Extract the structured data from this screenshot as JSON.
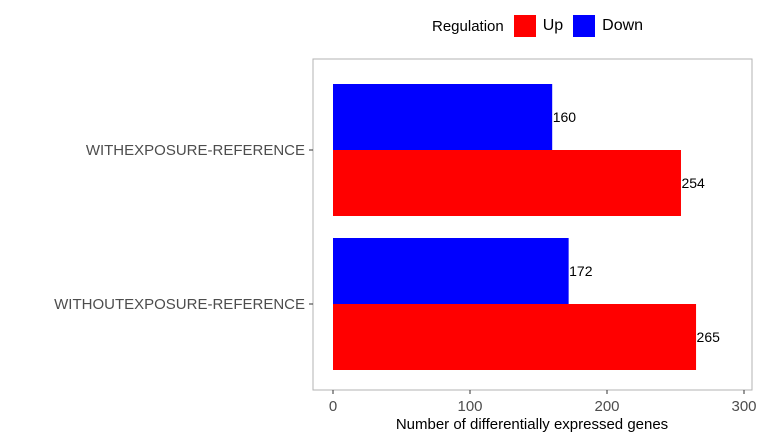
{
  "chart_data": {
    "type": "bar",
    "orientation": "horizontal",
    "categories": [
      "WITHEXPOSURE-REFERENCE",
      "WITHOUTEXPOSURE-REFERENCE"
    ],
    "series": [
      {
        "name": "Up",
        "color": "#ff0000",
        "values": [
          254,
          265
        ]
      },
      {
        "name": "Down",
        "color": "#0000ff",
        "values": [
          160,
          172
        ]
      }
    ],
    "xlabel": "Number of differentially expressed genes",
    "xlim": [
      0,
      300
    ],
    "xticks": [
      0,
      100,
      200,
      300
    ],
    "legend": {
      "title": "Regulation",
      "position": "top"
    },
    "grid": false
  }
}
